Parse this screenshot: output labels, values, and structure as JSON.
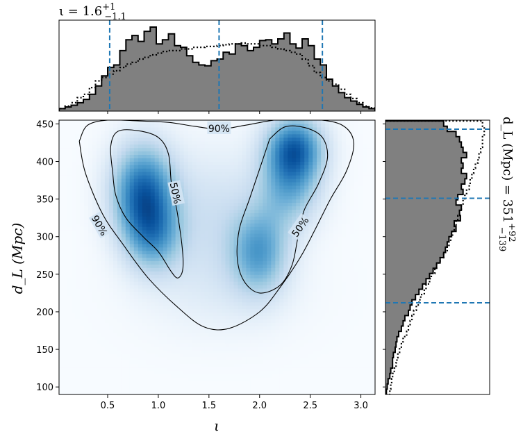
{
  "chart_data": [
    {
      "type": "heatmap",
      "panel": "joint-density",
      "xlabel": "ι",
      "ylabel": "d_L (Mpc)",
      "xlim": [
        0.02,
        3.14
      ],
      "ylim": [
        90,
        455
      ],
      "xticks": [
        0.5,
        1.0,
        1.5,
        2.0,
        2.5,
        3.0
      ],
      "xtick_labels": [
        "0.5",
        "1.0",
        "1.5",
        "2.0",
        "2.5",
        "3.0"
      ],
      "yticks": [
        100,
        150,
        200,
        250,
        300,
        350,
        400,
        450
      ],
      "ytick_labels": [
        "100",
        "150",
        "200",
        "250",
        "300",
        "350",
        "400",
        "450"
      ],
      "colormap": "Blues",
      "blobs": [
        {
          "x": 0.85,
          "y": 360,
          "sx": 0.22,
          "sy": 45,
          "w": 1.0
        },
        {
          "x": 0.95,
          "y": 300,
          "sx": 0.2,
          "sy": 35,
          "w": 0.55
        },
        {
          "x": 2.35,
          "y": 420,
          "sx": 0.2,
          "sy": 30,
          "w": 0.85
        },
        {
          "x": 2.3,
          "y": 370,
          "sx": 0.22,
          "sy": 40,
          "w": 0.6
        },
        {
          "x": 2.0,
          "y": 280,
          "sx": 0.2,
          "sy": 40,
          "w": 0.65
        },
        {
          "x": 1.55,
          "y": 330,
          "sx": 0.35,
          "sy": 60,
          "w": 0.25
        },
        {
          "x": 1.6,
          "y": 230,
          "sx": 0.55,
          "sy": 45,
          "w": 0.12
        }
      ],
      "contours": [
        {
          "label": "90%",
          "path": [
            [
              0.22,
              427
            ],
            [
              0.3,
              448
            ],
            [
              0.5,
              455
            ],
            [
              0.8,
              454
            ],
            [
              1.1,
              452
            ],
            [
              1.35,
              447
            ],
            [
              1.6,
              443
            ],
            [
              1.85,
              448
            ],
            [
              2.2,
              456
            ],
            [
              2.55,
              456
            ],
            [
              2.82,
              448
            ],
            [
              2.93,
              425
            ],
            [
              2.86,
              388
            ],
            [
              2.7,
              350
            ],
            [
              2.55,
              310
            ],
            [
              2.4,
              272
            ],
            [
              2.2,
              232
            ],
            [
              2.0,
              200
            ],
            [
              1.7,
              178
            ],
            [
              1.45,
              180
            ],
            [
              1.2,
              205
            ],
            [
              0.9,
              245
            ],
            [
              0.65,
              290
            ],
            [
              0.45,
              330
            ],
            [
              0.28,
              385
            ],
            [
              0.22,
              427
            ]
          ],
          "labels_at": [
            {
              "x": 1.6,
              "y": 444,
              "text": "90%"
            },
            {
              "x": 0.42,
              "y": 315,
              "text": "90%",
              "angle": 60
            }
          ]
        },
        {
          "label": "50%",
          "path": [
            [
              0.55,
              385
            ],
            [
              0.53,
              420
            ],
            [
              0.6,
              440
            ],
            [
              0.8,
              441
            ],
            [
              1.0,
              432
            ],
            [
              1.1,
              410
            ],
            [
              1.13,
              370
            ],
            [
              1.19,
              330
            ],
            [
              1.24,
              280
            ],
            [
              1.24,
              255
            ],
            [
              1.19,
              245
            ],
            [
              1.12,
              255
            ],
            [
              1.0,
              280
            ],
            [
              0.85,
              300
            ],
            [
              0.68,
              325
            ],
            [
              0.58,
              355
            ],
            [
              0.55,
              385
            ]
          ],
          "labels_at": [
            {
              "x": 1.17,
              "y": 358,
              "text": "50%",
              "angle": 78
            }
          ]
        },
        {
          "label": "50%",
          "path": [
            [
              2.1,
              430
            ],
            [
              2.25,
              446
            ],
            [
              2.45,
              445
            ],
            [
              2.62,
              432
            ],
            [
              2.67,
              405
            ],
            [
              2.58,
              370
            ],
            [
              2.44,
              335
            ],
            [
              2.38,
              300
            ],
            [
              2.32,
              262
            ],
            [
              2.2,
              235
            ],
            [
              2.0,
              225
            ],
            [
              1.85,
              240
            ],
            [
              1.78,
              270
            ],
            [
              1.8,
              310
            ],
            [
              1.9,
              350
            ],
            [
              2.0,
              390
            ],
            [
              2.1,
              430
            ]
          ],
          "labels_at": [
            {
              "x": 2.4,
              "y": 313,
              "text": "50%",
              "angle": -55
            }
          ]
        }
      ]
    },
    {
      "type": "bar",
      "panel": "top-marginal",
      "title": "ι = 1.6",
      "title_sup": "+1",
      "title_sub": "−1.1",
      "xlim": [
        0.02,
        3.14
      ],
      "bin_edges": [
        0.02,
        0.08,
        0.14,
        0.2,
        0.26,
        0.32,
        0.38,
        0.44,
        0.5,
        0.56,
        0.62,
        0.68,
        0.74,
        0.8,
        0.86,
        0.92,
        0.98,
        1.04,
        1.1,
        1.16,
        1.22,
        1.28,
        1.34,
        1.4,
        1.46,
        1.52,
        1.58,
        1.64,
        1.7,
        1.76,
        1.82,
        1.88,
        1.94,
        2.0,
        2.06,
        2.12,
        2.18,
        2.24,
        2.3,
        2.36,
        2.42,
        2.48,
        2.54,
        2.6,
        2.66,
        2.72,
        2.78,
        2.84,
        2.9,
        2.96,
        3.02,
        3.08,
        3.14
      ],
      "solid_hist": [
        0.03,
        0.05,
        0.07,
        0.1,
        0.14,
        0.2,
        0.3,
        0.42,
        0.52,
        0.55,
        0.72,
        0.85,
        0.9,
        0.83,
        0.95,
        1.0,
        0.8,
        0.85,
        0.92,
        0.78,
        0.76,
        0.66,
        0.58,
        0.55,
        0.54,
        0.6,
        0.62,
        0.7,
        0.68,
        0.8,
        0.78,
        0.72,
        0.76,
        0.84,
        0.85,
        0.8,
        0.86,
        0.93,
        0.8,
        0.75,
        0.86,
        0.78,
        0.62,
        0.55,
        0.38,
        0.3,
        0.22,
        0.16,
        0.12,
        0.08,
        0.05,
        0.03
      ],
      "dotted_hist": [
        0.03,
        0.06,
        0.1,
        0.16,
        0.2,
        0.28,
        0.36,
        0.4,
        0.44,
        0.48,
        0.52,
        0.56,
        0.58,
        0.62,
        0.64,
        0.67,
        0.69,
        0.71,
        0.72,
        0.72,
        0.74,
        0.74,
        0.76,
        0.76,
        0.77,
        0.77,
        0.78,
        0.79,
        0.8,
        0.8,
        0.81,
        0.8,
        0.8,
        0.78,
        0.78,
        0.76,
        0.74,
        0.72,
        0.7,
        0.68,
        0.62,
        0.54,
        0.46,
        0.4,
        0.36,
        0.32,
        0.26,
        0.2,
        0.15,
        0.1,
        0.06,
        0.04
      ],
      "quantile_lines": [
        0.52,
        1.6,
        2.62
      ],
      "quantile_color": "#1f77b4",
      "fill_color": "#808080"
    },
    {
      "type": "bar",
      "panel": "right-marginal",
      "orientation": "horizontal",
      "side_label_main": "d_L (Mpc) = 351",
      "side_label_sup": "+92",
      "side_label_sub": "−139",
      "ylim": [
        90,
        455
      ],
      "bin_edges": [
        90,
        97,
        104,
        111,
        118,
        125,
        132,
        139,
        146,
        153,
        160,
        167,
        174,
        181,
        188,
        195,
        202,
        209,
        216,
        223,
        230,
        237,
        244,
        251,
        258,
        265,
        272,
        279,
        286,
        293,
        300,
        307,
        314,
        321,
        328,
        335,
        342,
        349,
        356,
        363,
        370,
        377,
        384,
        391,
        398,
        405,
        412,
        419,
        426,
        433,
        440,
        447,
        454
      ],
      "solid_hist": [
        0.01,
        0.02,
        0.03,
        0.05,
        0.06,
        0.08,
        0.08,
        0.09,
        0.11,
        0.12,
        0.13,
        0.15,
        0.18,
        0.2,
        0.22,
        0.26,
        0.28,
        0.3,
        0.34,
        0.38,
        0.42,
        0.46,
        0.5,
        0.54,
        0.58,
        0.62,
        0.66,
        0.68,
        0.7,
        0.72,
        0.75,
        0.8,
        0.78,
        0.85,
        0.84,
        0.86,
        0.8,
        0.82,
        0.88,
        0.86,
        0.9,
        0.92,
        0.86,
        0.88,
        0.86,
        0.92,
        0.88,
        0.86,
        0.84,
        0.8,
        0.7,
        0.66
      ],
      "dotted_hist": [
        0.05,
        0.06,
        0.07,
        0.08,
        0.1,
        0.12,
        0.13,
        0.14,
        0.16,
        0.18,
        0.2,
        0.24,
        0.26,
        0.28,
        0.3,
        0.32,
        0.35,
        0.38,
        0.4,
        0.44,
        0.46,
        0.5,
        0.52,
        0.56,
        0.58,
        0.62,
        0.66,
        0.7,
        0.72,
        0.74,
        0.76,
        0.78,
        0.8,
        0.82,
        0.84,
        0.86,
        0.88,
        0.9,
        0.92,
        0.95,
        0.96,
        0.98,
        1.0,
        1.02,
        1.05,
        1.06,
        1.08,
        1.1,
        1.1,
        1.12,
        1.12,
        1.1
      ],
      "quantile_lines": [
        212,
        351,
        443
      ],
      "quantile_color": "#1f77b4",
      "fill_color": "#808080"
    }
  ]
}
